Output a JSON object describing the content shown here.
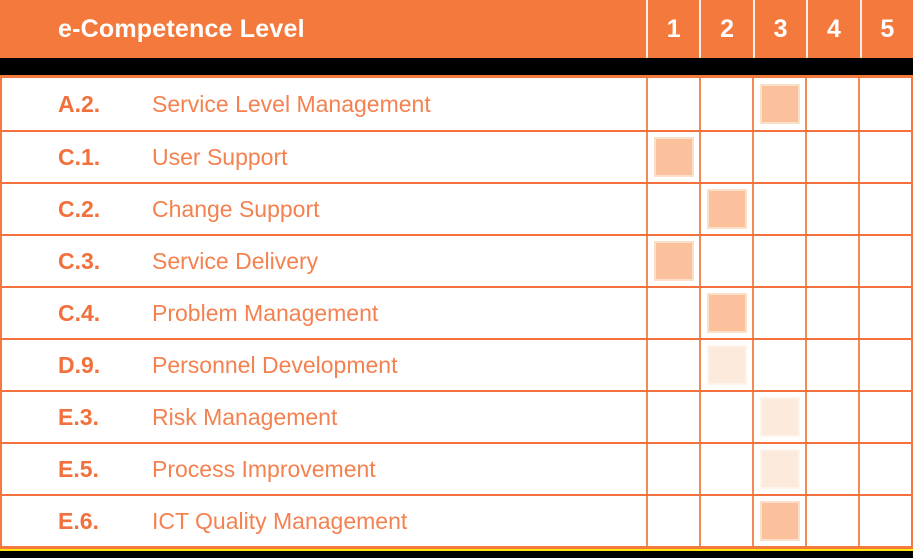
{
  "chart_data": {
    "type": "table",
    "title": "e-Competence Level",
    "columns": [
      "1",
      "2",
      "3",
      "4",
      "5"
    ],
    "rows": [
      {
        "code": "A.2.",
        "name": "Service Level Management",
        "level": 3,
        "intensity": "dark"
      },
      {
        "code": "C.1.",
        "name": "User Support",
        "level": 1,
        "intensity": "dark"
      },
      {
        "code": "C.2.",
        "name": "Change Support",
        "level": 2,
        "intensity": "dark"
      },
      {
        "code": "C.3.",
        "name": "Service Delivery",
        "level": 1,
        "intensity": "dark"
      },
      {
        "code": "C.4.",
        "name": "Problem Management",
        "level": 2,
        "intensity": "dark"
      },
      {
        "code": "D.9.",
        "name": "Personnel Development",
        "level": 2,
        "intensity": "light"
      },
      {
        "code": "E.3.",
        "name": "Risk Management",
        "level": 3,
        "intensity": "light"
      },
      {
        "code": "E.5.",
        "name": "Process Improvement",
        "level": 3,
        "intensity": "light"
      },
      {
        "code": "E.6.",
        "name": "ICT Quality Management",
        "level": 3,
        "intensity": "dark"
      }
    ]
  },
  "header": {
    "title": "e-Competence Level",
    "levels": [
      "1",
      "2",
      "3",
      "4",
      "5"
    ]
  },
  "colors": {
    "orange_primary": "#F4793C",
    "orange_grid": "#F18A58",
    "orange_row_border": "#F2713C",
    "header_divider": "#FDEFE6",
    "text_code": "#F2703B",
    "text_name": "#F4814F",
    "square_dark": "#FBC19D",
    "square_dark_border": "#FCDFC9",
    "square_light": "#FCEADD",
    "square_light_border": "#FEF4EC",
    "yellow_line": "#FBE70F",
    "black": "#000000"
  }
}
